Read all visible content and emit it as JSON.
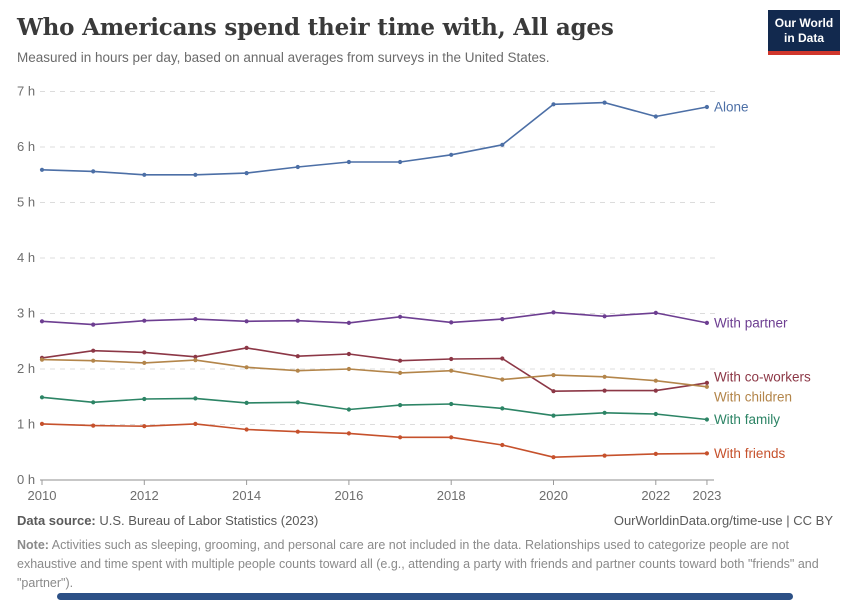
{
  "header": {
    "title": "Who Americans spend their time with, All ages",
    "subtitle": "Measured in hours per day, based on annual averages from surveys in the United States.",
    "logo": {
      "line1": "Our World",
      "line2": "in Data",
      "bg_color": "#12294E",
      "accent_color": "#D0362C"
    }
  },
  "chart_data": {
    "type": "line",
    "title": "Who Americans spend their time with, All ages",
    "xlabel": "",
    "ylabel": "hours per day",
    "x": [
      2010,
      2011,
      2012,
      2013,
      2014,
      2015,
      2016,
      2017,
      2018,
      2019,
      2020,
      2021,
      2022,
      2023
    ],
    "x_tick_labels": [
      "2010",
      "2012",
      "2014",
      "2016",
      "2018",
      "2020",
      "2022",
      "2023"
    ],
    "ylim": [
      0,
      7
    ],
    "y_ticks": [
      0,
      1,
      2,
      3,
      4,
      5,
      6,
      7
    ],
    "y_tick_labels": [
      "0 h",
      "1 h",
      "2 h",
      "3 h",
      "4 h",
      "5 h",
      "6 h",
      "7 h"
    ],
    "grid": "horizontal-dashed",
    "legend_position": "line-end-labels-right",
    "series": [
      {
        "name": "Alone",
        "color": "#4C6FA6",
        "label_offset": 0,
        "values": [
          5.59,
          5.56,
          5.5,
          5.5,
          5.53,
          5.64,
          5.73,
          5.73,
          5.86,
          6.04,
          6.77,
          6.8,
          6.55,
          6.72
        ]
      },
      {
        "name": "With partner",
        "color": "#6D3E91",
        "label_offset": 0,
        "values": [
          2.86,
          2.8,
          2.87,
          2.9,
          2.86,
          2.87,
          2.83,
          2.94,
          2.84,
          2.9,
          3.02,
          2.95,
          3.01,
          2.83
        ]
      },
      {
        "name": "With co-workers",
        "color": "#8C3746",
        "label_offset": -6,
        "values": [
          2.2,
          2.33,
          2.3,
          2.22,
          2.38,
          2.23,
          2.27,
          2.15,
          2.18,
          2.19,
          1.6,
          1.61,
          1.61,
          1.75
        ]
      },
      {
        "name": "With children",
        "color": "#B3854A",
        "label_offset": 10,
        "values": [
          2.17,
          2.15,
          2.11,
          2.16,
          2.03,
          1.97,
          2.0,
          1.93,
          1.97,
          1.81,
          1.89,
          1.86,
          1.79,
          1.68
        ]
      },
      {
        "name": "With family",
        "color": "#2C8465",
        "label_offset": 0,
        "values": [
          1.49,
          1.4,
          1.46,
          1.47,
          1.39,
          1.4,
          1.27,
          1.35,
          1.37,
          1.29,
          1.16,
          1.21,
          1.19,
          1.09
        ]
      },
      {
        "name": "With friends",
        "color": "#C6512C",
        "label_offset": 0,
        "values": [
          1.01,
          0.98,
          0.97,
          1.01,
          0.91,
          0.87,
          0.84,
          0.77,
          0.77,
          0.63,
          0.41,
          0.44,
          0.47,
          0.48
        ]
      }
    ]
  },
  "footer": {
    "data_source_label": "Data source:",
    "data_source": "U.S. Bureau of Labor Statistics (2023)",
    "attribution": "OurWorldinData.org/time-use | CC BY",
    "note_label": "Note:",
    "note": "Activities such as sleeping, grooming, and personal care are not included in the data. Relationships used to categorize people are not exhaustive and time spent with multiple people counts toward all (e.g., attending a party with friends and partner counts toward both \"friends\" and \"partner\")."
  }
}
